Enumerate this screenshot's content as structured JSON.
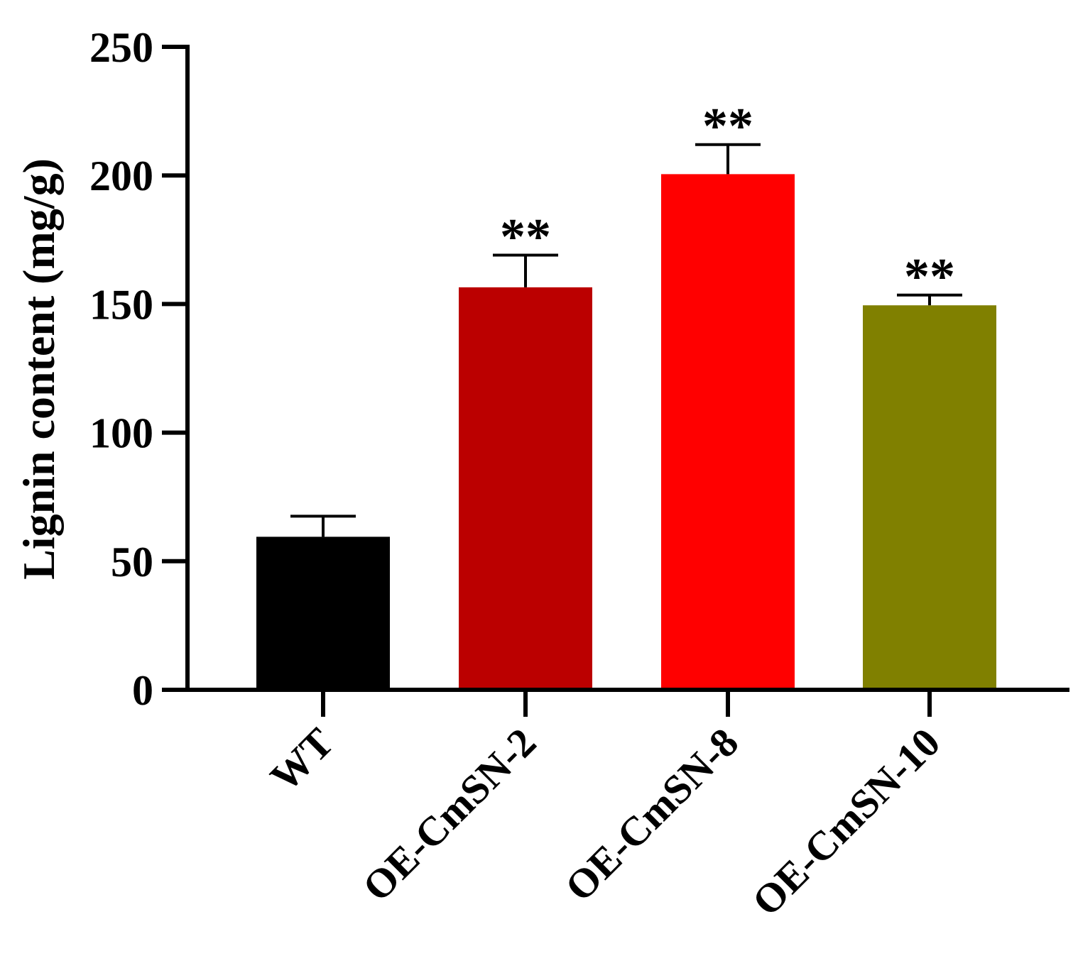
{
  "chart_data": {
    "type": "bar",
    "title": "",
    "xlabel": "",
    "ylabel": "Lignin content (mg/g)",
    "ylim": [
      0,
      250
    ],
    "yticks": [
      0,
      50,
      100,
      150,
      200,
      250
    ],
    "categories": [
      "WT",
      "OE-CmSN-2",
      "OE-CmSN-8",
      "OE-CmSN-10"
    ],
    "values": [
      59.5,
      156.5,
      200.5,
      149.5
    ],
    "errors": [
      8,
      12.5,
      11.5,
      4
    ],
    "significance": [
      "",
      "**",
      "**",
      "**"
    ],
    "colors": [
      "#000000",
      "#bb0000",
      "#ff0000",
      "#808000"
    ]
  }
}
